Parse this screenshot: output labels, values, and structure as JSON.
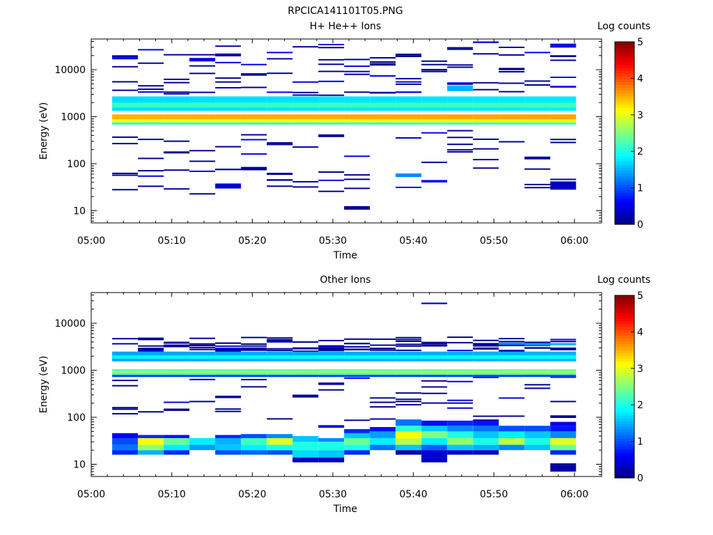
{
  "figure_title": "RPCICA141101T05.PNG",
  "colorbar_label": "Log counts",
  "colorbar_ticks": [
    "0",
    "1",
    "2",
    "3",
    "4",
    "5"
  ],
  "x_ticks": [
    "05:00",
    "05:10",
    "05:20",
    "05:30",
    "05:40",
    "05:50",
    "06:00"
  ],
  "y_ticks": [
    "10",
    "100",
    "1000",
    "10000"
  ],
  "colors": {
    "background": "#ffffff",
    "axes": "#000000",
    "colormap": "jet"
  },
  "chart_data": [
    {
      "type": "heatmap",
      "title": "H+ He++ Ions",
      "xlabel": "Time",
      "ylabel": "Energy (eV)",
      "x_range": [
        "05:00",
        "06:00"
      ],
      "y_scale": "log",
      "ylim": [
        5.5,
        45000
      ],
      "color_range": [
        0,
        5
      ],
      "time_bins_start_min": [
        2.6,
        5.8,
        9.0,
        12.2,
        15.4,
        18.6,
        21.8,
        25.0,
        28.2,
        31.4,
        34.6,
        37.8,
        41.0,
        44.2,
        47.4,
        50.6,
        53.8,
        57.0
      ],
      "time_bin_width_min": 3.2,
      "bands": [
        {
          "emin": 1330,
          "emax": 2700,
          "value": 1.8
        },
        {
          "emin": 1560,
          "emax": 2000,
          "value": 2.2
        },
        {
          "emin": 880,
          "emax": 1120,
          "value": 3.6
        },
        {
          "emin": 760,
          "emax": 880,
          "value": 3.2
        },
        {
          "emin": 680,
          "emax": 760,
          "value": 2.2
        }
      ],
      "scatter": [
        {
          "t": 44.2,
          "emin": 3500,
          "emax": 4600,
          "value": 1.5
        },
        {
          "t": 37.8,
          "emin": 52,
          "emax": 62,
          "value": 1.3
        },
        {
          "t": 31.4,
          "emin": 10.5,
          "emax": 12.5,
          "value": 0.1
        },
        {
          "t": 2.6,
          "emin": 17000,
          "emax": 17800,
          "value": 0.6
        },
        {
          "t": 5.8,
          "emin": 26000,
          "emax": 27500,
          "value": 0.4
        },
        {
          "t": 12.2,
          "emin": 15000,
          "emax": 17800,
          "value": 0.5
        },
        {
          "t": 47.4,
          "emin": 37000,
          "emax": 40000,
          "value": 0.5
        },
        {
          "t": 57.0,
          "emin": 31000,
          "emax": 35000,
          "value": 0.7
        },
        {
          "t": 57.0,
          "emin": 28,
          "emax": 42,
          "value": 0.3
        },
        {
          "t": 41.0,
          "emin": 40,
          "emax": 45,
          "value": 0.6
        },
        {
          "t": 15.4,
          "emin": 33,
          "emax": 38,
          "value": 0.5
        }
      ]
    },
    {
      "type": "heatmap",
      "title": "Other Ions",
      "xlabel": "Time",
      "ylabel": "Energy (eV)",
      "x_range": [
        "05:00",
        "06:00"
      ],
      "y_scale": "log",
      "ylim": [
        5.5,
        45000
      ],
      "color_range": [
        0,
        5
      ],
      "time_bins_start_min": [
        2.6,
        5.8,
        9.0,
        12.2,
        15.4,
        18.6,
        21.8,
        25.0,
        28.2,
        31.4,
        34.6,
        37.8,
        41.0,
        44.2,
        47.4,
        50.6,
        53.8,
        57.0
      ],
      "time_bin_width_min": 3.2,
      "bands": [
        {
          "emin": 1550,
          "emax": 2500,
          "value": 1.5
        },
        {
          "emin": 1750,
          "emax": 2100,
          "value": 1.9
        },
        {
          "emin": 800,
          "emax": 1050,
          "value": 2.3
        },
        {
          "emin": 870,
          "emax": 980,
          "value": 2.7
        },
        {
          "emin": 720,
          "emax": 800,
          "value": 1.0
        }
      ],
      "low_energy": [
        {
          "t": 2.6,
          "cells": [
            {
              "emin": 16,
              "emax": 20,
              "value": 0.8
            },
            {
              "emin": 20,
              "emax": 26,
              "value": 1.2
            },
            {
              "emin": 26,
              "emax": 36,
              "value": 1.0
            },
            {
              "emin": 36,
              "emax": 46,
              "value": 0.6
            }
          ]
        },
        {
          "t": 5.8,
          "cells": [
            {
              "emin": 16,
              "emax": 20,
              "value": 1.5
            },
            {
              "emin": 20,
              "emax": 26,
              "value": 2.6
            },
            {
              "emin": 26,
              "emax": 36,
              "value": 3.1
            },
            {
              "emin": 36,
              "emax": 42,
              "value": 0.8
            }
          ]
        },
        {
          "t": 9.0,
          "cells": [
            {
              "emin": 16,
              "emax": 20,
              "value": 0.8
            },
            {
              "emin": 20,
              "emax": 26,
              "value": 1.8
            },
            {
              "emin": 26,
              "emax": 36,
              "value": 2.4
            },
            {
              "emin": 36,
              "emax": 42,
              "value": 0.7
            }
          ]
        },
        {
          "t": 12.2,
          "cells": [
            {
              "emin": 20,
              "emax": 26,
              "value": 1.4
            },
            {
              "emin": 26,
              "emax": 36,
              "value": 1.8
            }
          ]
        },
        {
          "t": 15.4,
          "cells": [
            {
              "emin": 16,
              "emax": 20,
              "value": 1.0
            },
            {
              "emin": 20,
              "emax": 26,
              "value": 1.6
            },
            {
              "emin": 26,
              "emax": 36,
              "value": 1.5
            },
            {
              "emin": 36,
              "emax": 42,
              "value": 0.8
            }
          ]
        },
        {
          "t": 18.6,
          "cells": [
            {
              "emin": 16,
              "emax": 20,
              "value": 1.1
            },
            {
              "emin": 20,
              "emax": 26,
              "value": 1.8
            },
            {
              "emin": 26,
              "emax": 36,
              "value": 2.2
            },
            {
              "emin": 36,
              "emax": 44,
              "value": 1.0
            }
          ]
        },
        {
          "t": 21.8,
          "cells": [
            {
              "emin": 16,
              "emax": 20,
              "value": 1.0
            },
            {
              "emin": 20,
              "emax": 26,
              "value": 2.0
            },
            {
              "emin": 26,
              "emax": 36,
              "value": 3.0
            },
            {
              "emin": 36,
              "emax": 44,
              "value": 1.3
            }
          ]
        },
        {
          "t": 25.0,
          "cells": [
            {
              "emin": 11,
              "emax": 14,
              "value": 0.3
            },
            {
              "emin": 14,
              "emax": 20,
              "value": 1.7
            },
            {
              "emin": 20,
              "emax": 30,
              "value": 2.0
            },
            {
              "emin": 30,
              "emax": 40,
              "value": 1.6
            }
          ]
        },
        {
          "t": 28.2,
          "cells": [
            {
              "emin": 11,
              "emax": 14,
              "value": 0.3
            },
            {
              "emin": 14,
              "emax": 20,
              "value": 1.6
            },
            {
              "emin": 20,
              "emax": 30,
              "value": 2.0
            },
            {
              "emin": 30,
              "emax": 36,
              "value": 1.3
            },
            {
              "emin": 60,
              "emax": 68,
              "value": 0.5
            }
          ]
        },
        {
          "t": 31.4,
          "cells": [
            {
              "emin": 16,
              "emax": 20,
              "value": 0.8
            },
            {
              "emin": 20,
              "emax": 26,
              "value": 2.0
            },
            {
              "emin": 26,
              "emax": 36,
              "value": 2.4
            },
            {
              "emin": 36,
              "emax": 46,
              "value": 1.6
            },
            {
              "emin": 46,
              "emax": 56,
              "value": 0.8
            }
          ]
        },
        {
          "t": 34.6,
          "cells": [
            {
              "emin": 20,
              "emax": 26,
              "value": 1.2
            },
            {
              "emin": 26,
              "emax": 36,
              "value": 1.8
            },
            {
              "emin": 36,
              "emax": 50,
              "value": 1.4
            },
            {
              "emin": 50,
              "emax": 62,
              "value": 0.7
            }
          ]
        },
        {
          "t": 37.8,
          "cells": [
            {
              "emin": 16,
              "emax": 20,
              "value": 0.2
            },
            {
              "emin": 20,
              "emax": 26,
              "value": 1.6
            },
            {
              "emin": 26,
              "emax": 36,
              "value": 2.8
            },
            {
              "emin": 36,
              "emax": 50,
              "value": 3.1
            },
            {
              "emin": 50,
              "emax": 66,
              "value": 2.1
            },
            {
              "emin": 66,
              "emax": 90,
              "value": 1.2
            }
          ]
        },
        {
          "t": 41.0,
          "cells": [
            {
              "emin": 11,
              "emax": 14,
              "value": 0.3
            },
            {
              "emin": 14,
              "emax": 20,
              "value": 0.4
            },
            {
              "emin": 20,
              "emax": 26,
              "value": 1.1
            },
            {
              "emin": 26,
              "emax": 36,
              "value": 1.8
            },
            {
              "emin": 36,
              "emax": 50,
              "value": 2.5
            },
            {
              "emin": 50,
              "emax": 66,
              "value": 1.6
            },
            {
              "emin": 66,
              "emax": 85,
              "value": 0.7
            }
          ]
        },
        {
          "t": 44.2,
          "cells": [
            {
              "emin": 16,
              "emax": 20,
              "value": 0.4
            },
            {
              "emin": 20,
              "emax": 26,
              "value": 1.6
            },
            {
              "emin": 26,
              "emax": 36,
              "value": 2.6
            },
            {
              "emin": 36,
              "emax": 50,
              "value": 2.0
            },
            {
              "emin": 50,
              "emax": 66,
              "value": 1.3
            },
            {
              "emin": 66,
              "emax": 85,
              "value": 0.8
            }
          ]
        },
        {
          "t": 47.4,
          "cells": [
            {
              "emin": 16,
              "emax": 20,
              "value": 0.3
            },
            {
              "emin": 20,
              "emax": 26,
              "value": 1.5
            },
            {
              "emin": 26,
              "emax": 36,
              "value": 2.0
            },
            {
              "emin": 36,
              "emax": 50,
              "value": 1.6
            },
            {
              "emin": 50,
              "emax": 66,
              "value": 1.2
            },
            {
              "emin": 66,
              "emax": 85,
              "value": 0.7
            }
          ]
        },
        {
          "t": 50.6,
          "cells": [
            {
              "emin": 20,
              "emax": 26,
              "value": 1.3
            },
            {
              "emin": 26,
              "emax": 36,
              "value": 2.8
            },
            {
              "emin": 36,
              "emax": 50,
              "value": 1.8
            },
            {
              "emin": 50,
              "emax": 66,
              "value": 1.0
            }
          ]
        },
        {
          "t": 53.8,
          "cells": [
            {
              "emin": 20,
              "emax": 26,
              "value": 1.6
            },
            {
              "emin": 26,
              "emax": 36,
              "value": 2.0
            },
            {
              "emin": 36,
              "emax": 50,
              "value": 1.6
            },
            {
              "emin": 50,
              "emax": 66,
              "value": 1.0
            }
          ]
        },
        {
          "t": 57.0,
          "cells": [
            {
              "emin": 7,
              "emax": 10.5,
              "value": 0.2
            },
            {
              "emin": 16,
              "emax": 20,
              "value": 0.8
            },
            {
              "emin": 20,
              "emax": 26,
              "value": 2.4
            },
            {
              "emin": 26,
              "emax": 36,
              "value": 3.0
            },
            {
              "emin": 36,
              "emax": 50,
              "value": 1.3
            },
            {
              "emin": 50,
              "emax": 66,
              "value": 0.7
            },
            {
              "emin": 66,
              "emax": 80,
              "value": 0.5
            }
          ]
        }
      ],
      "scatter": [
        {
          "t": 41.0,
          "emin": 25500,
          "emax": 27500,
          "value": 0.4
        },
        {
          "t": 50.6,
          "emin": 3500,
          "emax": 3900,
          "value": 1.3
        },
        {
          "t": 53.8,
          "emin": 3400,
          "emax": 3800,
          "value": 1.4
        },
        {
          "t": 57.0,
          "emin": 3400,
          "emax": 3800,
          "value": 1.5
        }
      ]
    }
  ]
}
